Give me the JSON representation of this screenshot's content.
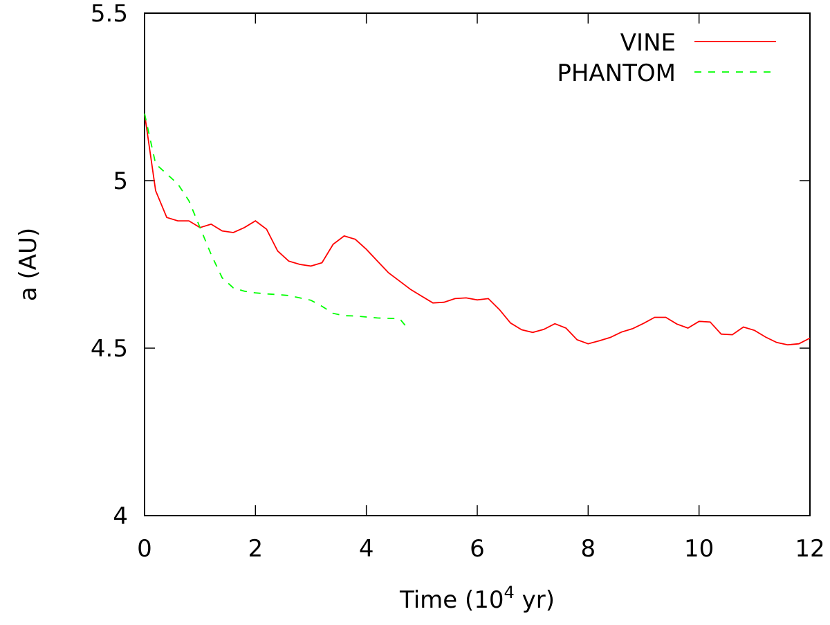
{
  "chart_data": {
    "type": "line",
    "xlabel": {
      "prefix": "Time (10",
      "superscript": "4",
      "suffix": " yr)"
    },
    "ylabel": "a (AU)",
    "xlim": [
      0,
      12
    ],
    "ylim": [
      4,
      5.5
    ],
    "xticks": [
      "0",
      "2",
      "4",
      "6",
      "8",
      "10",
      "12"
    ],
    "yticks": [
      "4",
      "4.5",
      "5",
      "5.5"
    ],
    "grid": false,
    "legend_position": "top-right",
    "series": [
      {
        "name": "VINE",
        "color": "#ff0000",
        "style": "solid",
        "x": [
          0,
          0.2,
          0.4,
          0.6,
          0.8,
          1.0,
          1.2,
          1.4,
          1.6,
          1.8,
          2.0,
          2.2,
          2.4,
          2.6,
          2.8,
          3.0,
          3.2,
          3.4,
          3.6,
          3.8,
          4.0,
          4.2,
          4.4,
          4.6,
          4.8,
          5.0,
          5.2,
          5.4,
          5.6,
          5.8,
          6.0,
          6.2,
          6.4,
          6.6,
          6.8,
          7.0,
          7.2,
          7.4,
          7.6,
          7.8,
          8.0,
          8.2,
          8.4,
          8.6,
          8.8,
          9.0,
          9.2,
          9.4,
          9.6,
          9.8,
          10.0,
          10.2,
          10.4,
          10.6,
          10.8,
          11.0,
          11.2,
          11.4,
          11.6,
          11.8,
          12.0
        ],
        "y": [
          5.2,
          4.97,
          4.89,
          4.88,
          4.88,
          4.86,
          4.87,
          4.85,
          4.845,
          4.86,
          4.88,
          4.855,
          4.79,
          4.76,
          4.75,
          4.745,
          4.755,
          4.81,
          4.835,
          4.825,
          4.795,
          4.76,
          4.725,
          4.7,
          4.675,
          4.655,
          4.635,
          4.637,
          4.648,
          4.65,
          4.644,
          4.648,
          4.615,
          4.575,
          4.555,
          4.547,
          4.556,
          4.573,
          4.56,
          4.525,
          4.513,
          4.522,
          4.532,
          4.548,
          4.558,
          4.574,
          4.592,
          4.592,
          4.572,
          4.56,
          4.58,
          4.578,
          4.542,
          4.54,
          4.563,
          4.553,
          4.533,
          4.517,
          4.51,
          4.513,
          4.53
        ]
      },
      {
        "name": "PHANTOM",
        "color": "#00ff00",
        "style": "dashed",
        "x": [
          0,
          0.2,
          0.4,
          0.6,
          0.8,
          1.0,
          1.2,
          1.4,
          1.6,
          1.8,
          2.0,
          2.2,
          2.4,
          2.6,
          2.8,
          3.0,
          3.2,
          3.4,
          3.6,
          3.8,
          4.0,
          4.2,
          4.4,
          4.6,
          4.7
        ],
        "y": [
          5.2,
          5.05,
          5.02,
          4.99,
          4.94,
          4.86,
          4.78,
          4.71,
          4.68,
          4.67,
          4.665,
          4.662,
          4.66,
          4.657,
          4.65,
          4.643,
          4.625,
          4.604,
          4.597,
          4.596,
          4.593,
          4.59,
          4.589,
          4.588,
          4.568
        ]
      }
    ]
  }
}
